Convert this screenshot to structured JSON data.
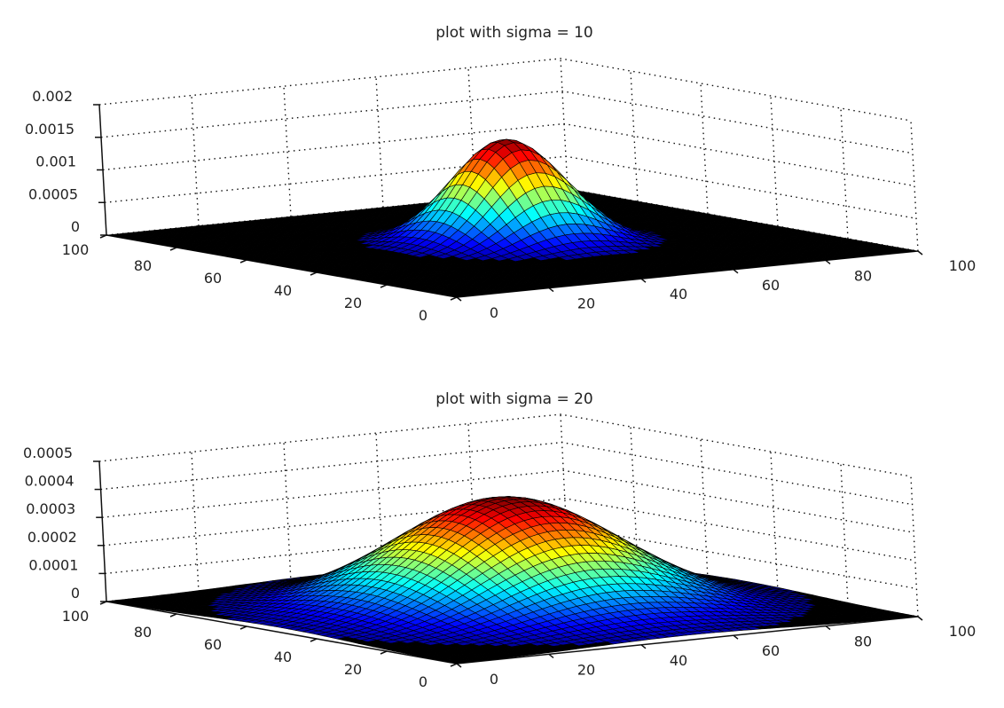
{
  "chart_data": [
    {
      "type": "surface",
      "title": "plot with sigma = 10",
      "function": "bivariate gaussian",
      "sigma": 10,
      "mean": [
        50,
        50
      ],
      "x_ticks": [
        "0",
        "20",
        "40",
        "60",
        "80",
        "100"
      ],
      "y_ticks": [
        "0",
        "20",
        "40",
        "60",
        "80",
        "100"
      ],
      "z_ticks": [
        "0",
        "0.0005",
        "0.001",
        "0.0015",
        "0.002"
      ],
      "xlim": [
        0,
        100
      ],
      "ylim": [
        0,
        100
      ],
      "zlim": [
        0,
        0.002
      ],
      "grid": true,
      "colormap": "jet"
    },
    {
      "type": "surface",
      "title": "plot with sigma = 20",
      "function": "bivariate gaussian",
      "sigma": 20,
      "mean": [
        50,
        50
      ],
      "x_ticks": [
        "0",
        "20",
        "40",
        "60",
        "80",
        "100"
      ],
      "y_ticks": [
        "0",
        "20",
        "40",
        "60",
        "80",
        "100"
      ],
      "z_ticks": [
        "0",
        "0.0001",
        "0.0002",
        "0.0003",
        "0.0004",
        "0.0005"
      ],
      "xlim": [
        0,
        100
      ],
      "ylim": [
        0,
        100
      ],
      "zlim": [
        0,
        0.0005
      ],
      "grid": true,
      "colormap": "jet"
    }
  ]
}
